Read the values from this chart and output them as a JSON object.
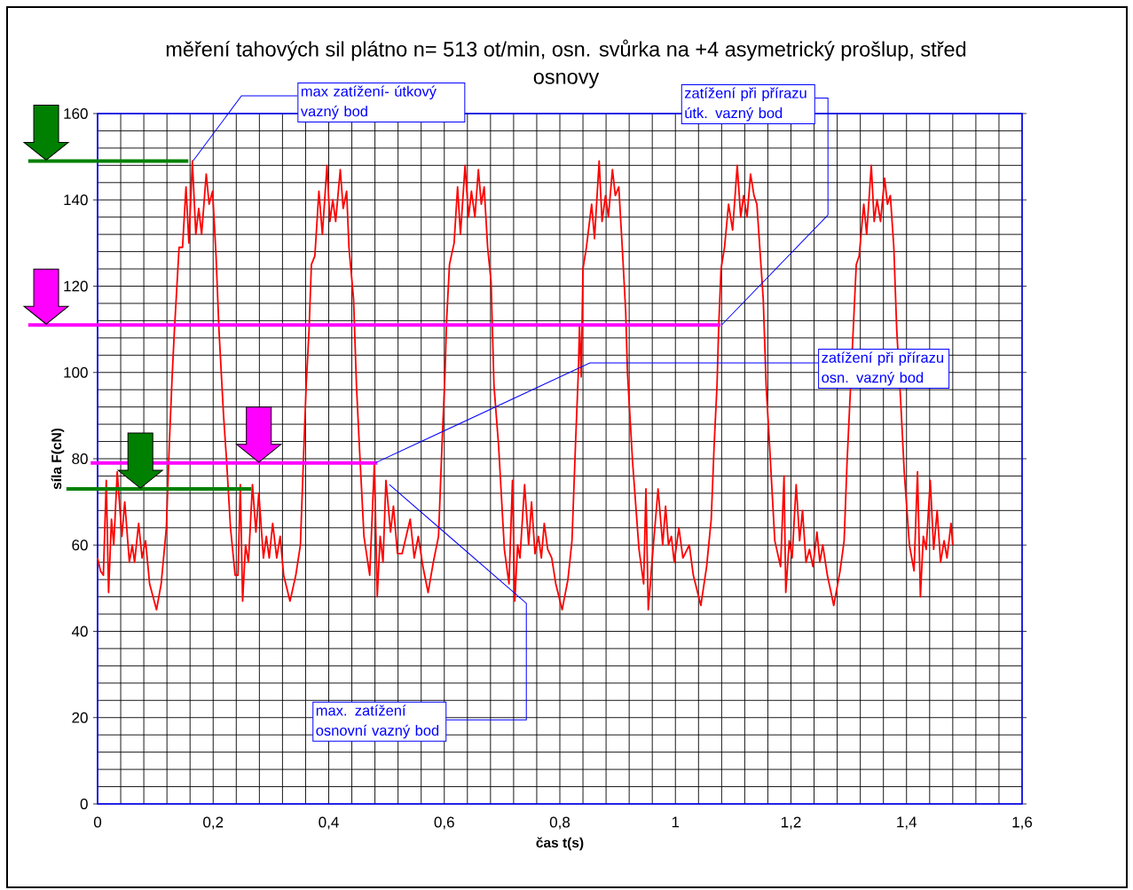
{
  "chart_data": {
    "type": "line",
    "title": "měření tahových sil plátno n= 513 ot/min, osn. svůrka na +4 asymetrický prošlup, střed osnovy",
    "xlabel": "čas t(s)",
    "ylabel": "síla F(cN)",
    "xlim": [
      0,
      1.6
    ],
    "ylim": [
      0,
      160
    ],
    "xticks": [
      0,
      {
        "value": 0.2,
        "label": "0,2"
      },
      {
        "value": 0.4,
        "label": "0,4"
      },
      {
        "value": 0.6,
        "label": "0,6"
      },
      {
        "value": 0.8,
        "label": "0,8"
      },
      1,
      {
        "value": 1.2,
        "label": "1,2"
      },
      {
        "value": 1.4,
        "label": "1,4"
      },
      {
        "value": 1.6,
        "label": "1,6"
      }
    ],
    "yticks": [
      0,
      20,
      40,
      60,
      80,
      100,
      120,
      140,
      160
    ],
    "grid": true,
    "series": [
      {
        "color": "#ff0000",
        "x": [
          0,
          0.005,
          0.01,
          0.015,
          0.019,
          0.024,
          0.028,
          0.034,
          0.042,
          0.047,
          0.055,
          0.06,
          0.064,
          0.071,
          0.077,
          0.083,
          0.09,
          0.102,
          0.11,
          0.119,
          0.124,
          0.129,
          0.133,
          0.136,
          0.141,
          0.147,
          0.153,
          0.158,
          0.164,
          0.17,
          0.175,
          0.18,
          0.188,
          0.193,
          0.199,
          0.205,
          0.21,
          0.218,
          0.223,
          0.23,
          0.238,
          0.243,
          0.247,
          0.251,
          0.256,
          0.261,
          0.268,
          0.274,
          0.279,
          0.287,
          0.292,
          0.297,
          0.303,
          0.31,
          0.316,
          0.322,
          0.333,
          0.343,
          0.351,
          0.356,
          0.361,
          0.366,
          0.37,
          0.376,
          0.383,
          0.389,
          0.397,
          0.402,
          0.407,
          0.412,
          0.42,
          0.425,
          0.431,
          0.435,
          0.443,
          0.448,
          0.453,
          0.461,
          0.471,
          0.479,
          0.484,
          0.489,
          0.494,
          0.499,
          0.507,
          0.512,
          0.519,
          0.527,
          0.541,
          0.548,
          0.555,
          0.563,
          0.572,
          0.581,
          0.59,
          0.596,
          0.601,
          0.604,
          0.609,
          0.617,
          0.623,
          0.628,
          0.636,
          0.642,
          0.647,
          0.653,
          0.659,
          0.664,
          0.669,
          0.675,
          0.681,
          0.686,
          0.694,
          0.704,
          0.712,
          0.718,
          0.722,
          0.727,
          0.731,
          0.739,
          0.746,
          0.751,
          0.757,
          0.763,
          0.768,
          0.773,
          0.779,
          0.786,
          0.793,
          0.804,
          0.814,
          0.821,
          0.827,
          0.832,
          0.834,
          0.837,
          0.84,
          0.846,
          0.855,
          0.86,
          0.868,
          0.873,
          0.879,
          0.884,
          0.891,
          0.896,
          0.902,
          0.908,
          0.914,
          0.917,
          0.926,
          0.937,
          0.945,
          0.949,
          0.953,
          0.96,
          0.97,
          0.978,
          0.983,
          0.988,
          0.993,
          0.998,
          1.006,
          1.013,
          1.024,
          1.031,
          1.044,
          1.054,
          1.062,
          1.067,
          1.072,
          1.075,
          1.079,
          1.085,
          1.092,
          1.099,
          1.107,
          1.113,
          1.118,
          1.124,
          1.13,
          1.136,
          1.141,
          1.147,
          1.152,
          1.157,
          1.163,
          1.172,
          1.182,
          1.188,
          1.191,
          1.197,
          1.202,
          1.209,
          1.215,
          1.22,
          1.226,
          1.232,
          1.238,
          1.245,
          1.25,
          1.255,
          1.263,
          1.274,
          1.285,
          1.292,
          1.297,
          1.303,
          1.305,
          1.309,
          1.313,
          1.318,
          1.326,
          1.331,
          1.339,
          1.344,
          1.349,
          1.355,
          1.362,
          1.367,
          1.372,
          1.378,
          1.383,
          1.39,
          1.396,
          1.405,
          1.413,
          1.419,
          1.424,
          1.429,
          1.434,
          1.441,
          1.447,
          1.453,
          1.459,
          1.465,
          1.47,
          1.477,
          1.48
        ],
        "values": [
          57,
          54,
          53,
          75,
          49,
          66,
          60,
          77,
          62,
          70,
          56,
          60,
          56,
          65,
          57,
          61,
          51,
          45,
          51,
          64,
          83,
          99,
          110,
          117,
          129,
          129,
          143,
          130,
          149,
          132,
          138,
          132,
          146,
          139,
          142,
          127,
          110,
          90,
          80,
          64,
          53,
          53,
          74,
          47,
          60,
          56,
          74,
          63,
          72,
          57,
          62,
          57,
          65,
          57,
          62,
          53,
          47,
          53,
          60,
          79,
          97,
          110,
          125,
          127,
          142,
          132,
          148,
          135,
          140,
          135,
          147,
          138,
          142,
          129,
          117,
          97,
          83,
          62,
          53,
          79,
          48,
          62,
          56,
          75,
          63,
          69,
          58,
          58,
          66,
          57,
          62,
          55,
          49,
          56,
          62,
          83,
          99,
          112,
          125,
          130,
          143,
          132,
          148,
          136,
          142,
          136,
          147,
          139,
          143,
          129,
          121,
          97,
          83,
          59,
          51,
          75,
          47,
          60,
          57,
          74,
          60,
          70,
          58,
          62,
          57,
          65,
          59,
          57,
          51,
          45,
          52,
          61,
          83,
          100,
          111,
          99,
          124,
          129,
          139,
          131,
          149,
          135,
          141,
          136,
          147,
          141,
          143,
          129,
          114,
          100,
          79,
          59,
          51,
          73,
          45,
          57,
          73,
          60,
          69,
          60,
          62,
          56,
          64,
          57,
          60,
          53,
          46,
          55,
          66,
          83,
          97,
          111,
          124,
          129,
          139,
          133,
          148,
          136,
          141,
          136,
          146,
          141,
          139,
          127,
          117,
          97,
          83,
          61,
          55,
          76,
          49,
          61,
          57,
          74,
          61,
          68,
          56,
          59,
          55,
          63,
          56,
          60,
          53,
          46,
          54,
          61,
          79,
          null,
          null,
          null,
          125,
          127,
          139,
          132,
          148,
          135,
          140,
          135,
          145,
          139,
          141,
          129,
          110,
          93,
          77,
          60,
          54,
          77,
          48,
          62,
          59,
          75,
          59,
          68,
          56,
          61,
          57,
          65,
          60
        ]
      }
    ],
    "ref_lines": [
      {
        "axis": "y",
        "value": 149,
        "color": "#008000"
      },
      {
        "axis": "y",
        "value": 111,
        "color": "#ff00ff"
      },
      {
        "axis": "y",
        "value": 79,
        "color": "#ff00ff"
      },
      {
        "axis": "y",
        "value": 73,
        "color": "#008000"
      }
    ],
    "annotations": [
      {
        "text": "max zatížení- útkový vazný bod",
        "x": 0.165,
        "y": 149
      },
      {
        "text": "zatížení při přírazu útk. vazný bod",
        "x": 1.08,
        "y": 111
      },
      {
        "text": "zatížení při přírazu osn. vazný bod",
        "x": 0.48,
        "y": 79
      },
      {
        "text": "max. zatížení osnovní vazný bod",
        "x": 0.505,
        "y": 74
      }
    ]
  }
}
